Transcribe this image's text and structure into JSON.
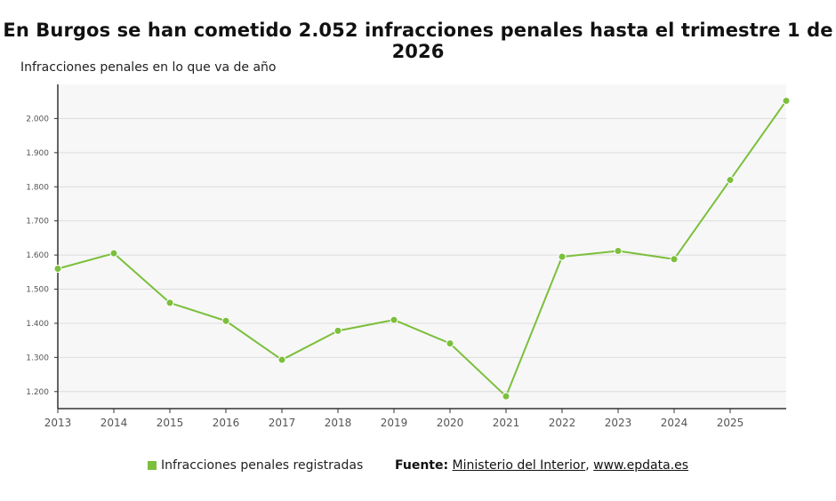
{
  "header": {
    "title": "En Burgos se han cometido 2.052 infracciones penales hasta el trimestre 1 de 2026",
    "subtitle": "Infracciones penales en lo que va de año"
  },
  "legend": {
    "label": "Infracciones penales registradas"
  },
  "source": {
    "prefix": "Fuente:",
    "link1": "Ministerio del Interior",
    "separator": ",",
    "link2": "www.epdata.es"
  },
  "colors": {
    "series": "#7bbf3c",
    "plot_background": "#f7f7f7",
    "gridline": "#dcdcdc",
    "axis": "#333333"
  },
  "chart_data": {
    "type": "line",
    "title": "En Burgos se han cometido 2.052 infracciones penales hasta el trimestre 1 de 2026",
    "subtitle": "Infracciones penales en lo que va de año",
    "x": [
      2013,
      2014,
      2015,
      2016,
      2017,
      2018,
      2019,
      2020,
      2021,
      2022,
      2023,
      2024,
      2025,
      2026
    ],
    "x_tick_labels": [
      "2013",
      "2014",
      "2015",
      "2016",
      "2017",
      "2018",
      "2019",
      "2020",
      "2021",
      "2022",
      "2023",
      "2024",
      "2025"
    ],
    "y_tick_values": [
      1200,
      1300,
      1400,
      1500,
      1600,
      1700,
      1800,
      1900,
      2000
    ],
    "y_tick_labels": [
      "1.200",
      "1.300",
      "1.400",
      "1.500",
      "1.600",
      "1.700",
      "1.800",
      "1.900",
      "2.000"
    ],
    "series": [
      {
        "name": "Infracciones penales registradas",
        "values": [
          1560,
          1605,
          1460,
          1407,
          1293,
          1378,
          1410,
          1341,
          1186,
          1595,
          1612,
          1588,
          1820,
          2052
        ]
      }
    ],
    "xlim": [
      2013,
      2026
    ],
    "ylim": [
      1150,
      2100
    ],
    "grid": true,
    "legend_position": "bottom"
  }
}
